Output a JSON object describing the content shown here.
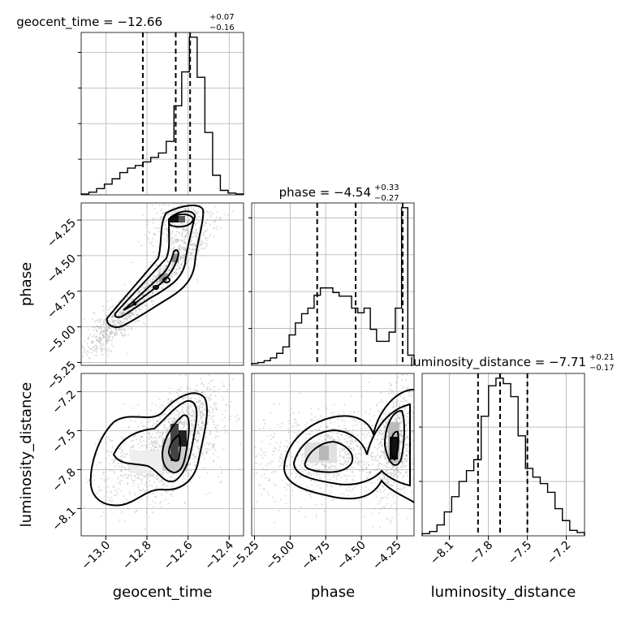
{
  "chart_data": {
    "type": "corner",
    "parameters": [
      "geocent_time",
      "phase",
      "luminosity_distance"
    ],
    "axis_labels": {
      "x": [
        "geocent_time",
        "phase",
        "luminosity_distance"
      ],
      "y": [
        "phase",
        "luminosity_distance"
      ]
    },
    "titles": [
      {
        "param": "geocent_time",
        "text": "geocent_time = −12.66",
        "plus": "+0.07",
        "minus": "−0.16"
      },
      {
        "param": "phase",
        "text": "phase = −4.54",
        "plus": "+0.33",
        "minus": "−0.27"
      },
      {
        "param": "luminosity_distance",
        "text": "luminosity_distance = −7.71",
        "plus": "+0.21",
        "minus": "−0.17"
      }
    ],
    "ranges": {
      "geocent_time": [
        -13.12,
        -12.33
      ],
      "phase": [
        -5.27,
        -4.13
      ],
      "luminosity_distance": [
        -8.31,
        -7.06
      ]
    },
    "ticks": {
      "geocent_time": [
        {
          "v": -13.0,
          "label": "−13.0"
        },
        {
          "v": -12.8,
          "label": "−12.8"
        },
        {
          "v": -12.6,
          "label": "−12.6"
        },
        {
          "v": -12.4,
          "label": "−12.4"
        }
      ],
      "phase": [
        {
          "v": -5.25,
          "label": "−5.25"
        },
        {
          "v": -5.0,
          "label": "−5.00"
        },
        {
          "v": -4.75,
          "label": "−4.75"
        },
        {
          "v": -4.5,
          "label": "−4.50"
        },
        {
          "v": -4.25,
          "label": "−4.25"
        }
      ],
      "luminosity_distance": [
        {
          "v": -8.1,
          "label": "−8.1"
        },
        {
          "v": -7.8,
          "label": "−7.8"
        },
        {
          "v": -7.5,
          "label": "−7.5"
        },
        {
          "v": -7.2,
          "label": "−7.2"
        }
      ]
    },
    "quantiles": {
      "geocent_time": [
        -12.82,
        -12.66,
        -12.59
      ],
      "phase": [
        -4.81,
        -4.54,
        -4.21
      ],
      "luminosity_distance": [
        -7.88,
        -7.71,
        -7.5
      ]
    },
    "histograms": {
      "geocent_time": {
        "min": -13.12,
        "max": -12.33,
        "counts": [
          1,
          3,
          7,
          12,
          18,
          25,
          30,
          33,
          37,
          42,
          47,
          60,
          100,
          138,
          177,
          132,
          70,
          22,
          5,
          2,
          1
        ]
      },
      "phase": {
        "min": -5.27,
        "max": -4.13,
        "counts": [
          2,
          3,
          5,
          8,
          13,
          20,
          33,
          46,
          56,
          62,
          76,
          84,
          84,
          79,
          75,
          75,
          62,
          57,
          62,
          39,
          26,
          26,
          36,
          62,
          171,
          11
        ]
      },
      "luminosity_distance": {
        "min": -8.31,
        "max": -7.06,
        "counts": [
          2,
          4,
          10,
          22,
          36,
          50,
          60,
          70,
          110,
          138,
          145,
          140,
          128,
          92,
          62,
          54,
          48,
          40,
          25,
          14,
          5,
          3
        ]
      }
    },
    "grid": true
  }
}
